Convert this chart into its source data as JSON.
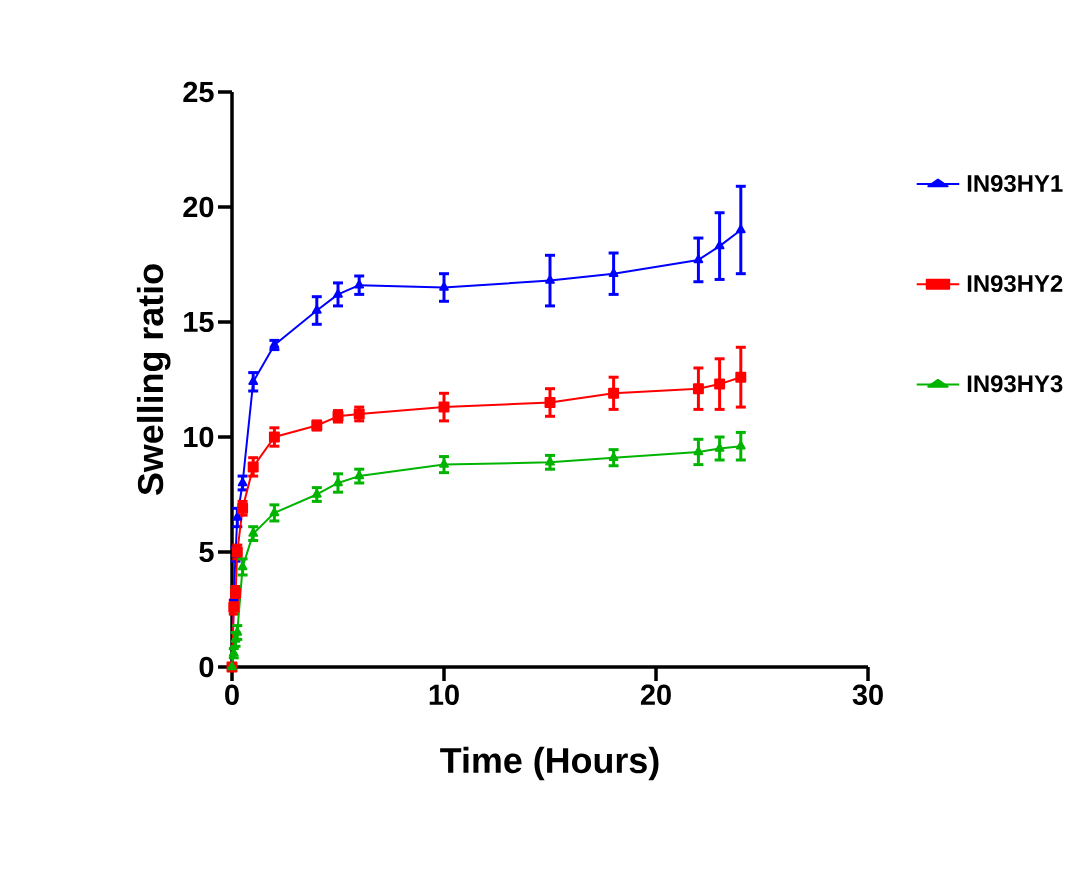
{
  "chart_data": {
    "type": "line",
    "xlabel": "Time (Hours)",
    "ylabel": "Swelling ratio",
    "x": [
      0,
      0.083,
      0.167,
      0.25,
      0.5,
      1,
      2,
      4,
      5,
      6,
      10,
      15,
      18,
      22,
      23,
      24
    ],
    "series": [
      {
        "name": "IN93HY1",
        "color": "#0000ff",
        "marker": "triangle",
        "values": [
          0,
          3.0,
          4.9,
          6.5,
          8.0,
          12.4,
          14.0,
          15.5,
          16.2,
          16.6,
          16.5,
          16.8,
          17.1,
          17.7,
          18.3,
          19.0
        ],
        "errors": [
          0,
          null,
          0.3,
          0.4,
          0.3,
          0.4,
          0.2,
          0.6,
          0.5,
          0.4,
          0.6,
          1.1,
          0.9,
          0.95,
          1.45,
          1.9
        ]
      },
      {
        "name": "IN93HY2",
        "color": "#ff0000",
        "marker": "square",
        "values": [
          0,
          2.6,
          3.2,
          5.0,
          6.9,
          8.7,
          10.0,
          10.5,
          10.9,
          11.0,
          11.3,
          11.5,
          11.9,
          12.1,
          12.3,
          12.6
        ],
        "errors": [
          0,
          0.3,
          0.3,
          0.3,
          0.3,
          0.4,
          0.4,
          0.2,
          0.25,
          0.3,
          0.6,
          0.6,
          0.7,
          0.9,
          1.1,
          1.3
        ]
      },
      {
        "name": "IN93HY3",
        "color": "#00b400",
        "marker": "triangle",
        "values": [
          0,
          0.6,
          1.2,
          1.5,
          4.35,
          5.8,
          6.7,
          7.5,
          8.0,
          8.3,
          8.8,
          8.9,
          9.1,
          9.35,
          9.5,
          9.6
        ],
        "errors": [
          0,
          0.2,
          0.3,
          0.3,
          0.35,
          0.3,
          0.35,
          0.3,
          0.4,
          0.3,
          0.35,
          0.3,
          0.35,
          0.55,
          0.5,
          0.6
        ]
      }
    ],
    "xlim": [
      0,
      30
    ],
    "xticks": [
      0,
      10,
      20,
      30
    ],
    "ylim": [
      0,
      25
    ],
    "yticks": [
      0,
      5,
      10,
      15,
      20,
      25
    ],
    "grid": false,
    "legend": "right",
    "line_style": "solid"
  }
}
